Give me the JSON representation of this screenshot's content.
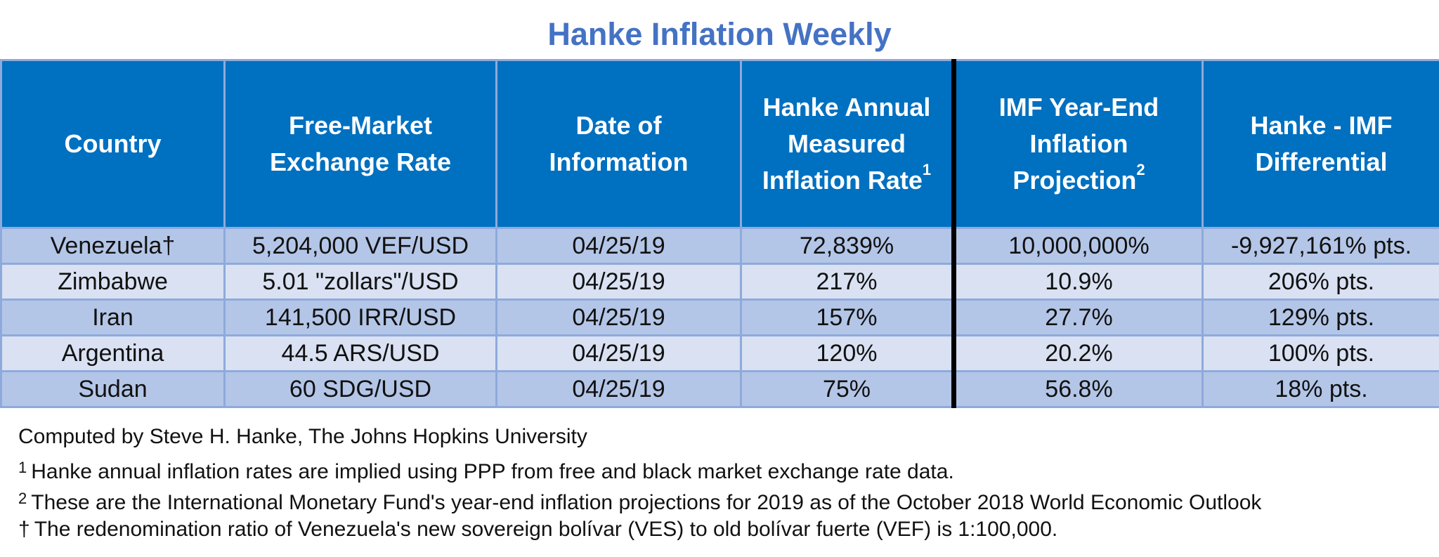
{
  "title": "Hanke Inflation Weekly",
  "table": {
    "headers": [
      {
        "line1": "Country",
        "line2": "",
        "line3": "",
        "sup": ""
      },
      {
        "line1": "Free-Market",
        "line2": "Exchange Rate",
        "line3": "",
        "sup": ""
      },
      {
        "line1": "Date of",
        "line2": "Information",
        "line3": "",
        "sup": ""
      },
      {
        "line1": "Hanke Annual",
        "line2": "Measured",
        "line3": "Inflation Rate",
        "sup": "1"
      },
      {
        "line1": "IMF Year-End",
        "line2": "Inflation",
        "line3": "Projection",
        "sup": "2"
      },
      {
        "line1": "Hanke - IMF",
        "line2": "Differential",
        "line3": "",
        "sup": ""
      }
    ],
    "rows": [
      {
        "country": "Venezuela†",
        "exchange_rate": "5,204,000 VEF/USD",
        "date": "04/25/19",
        "hanke_rate": "72,839%",
        "imf_projection": "10,000,000%",
        "differential": "-9,927,161% pts."
      },
      {
        "country": "Zimbabwe",
        "exchange_rate": "5.01 \"zollars\"/USD",
        "date": "04/25/19",
        "hanke_rate": "217%",
        "imf_projection": "10.9%",
        "differential": "206% pts."
      },
      {
        "country": "Iran",
        "exchange_rate": "141,500 IRR/USD",
        "date": "04/25/19",
        "hanke_rate": "157%",
        "imf_projection": "27.7%",
        "differential": "129% pts."
      },
      {
        "country": "Argentina",
        "exchange_rate": "44.5 ARS/USD",
        "date": "04/25/19",
        "hanke_rate": "120%",
        "imf_projection": "20.2%",
        "differential": "100% pts."
      },
      {
        "country": "Sudan",
        "exchange_rate": "60 SDG/USD",
        "date": "04/25/19",
        "hanke_rate": "75%",
        "imf_projection": "56.8%",
        "differential": "18% pts."
      }
    ]
  },
  "notes": {
    "credit": "Computed by Steve H. Hanke, The Johns Hopkins University",
    "note1_mark": "1",
    "note1": "Hanke annual inflation rates are implied using PPP from free and black market exchange rate data.",
    "note2_mark": "2",
    "note2": "These are the International Monetary Fund's year-end inflation projections for 2019 as of the October 2018 World Economic Outlook",
    "dagger_mark": "†",
    "dagger": "The redenomination ratio of Venezuela's new sovereign bolívar (VES) to old bolívar fuerte (VEF) is 1:100,000."
  },
  "colors": {
    "title": "#4472c4",
    "header_bg": "#0070c0",
    "row_dark": "#b4c6e7",
    "row_light": "#d9e1f2",
    "grid": "#8eaadb",
    "divider": "#000000"
  }
}
